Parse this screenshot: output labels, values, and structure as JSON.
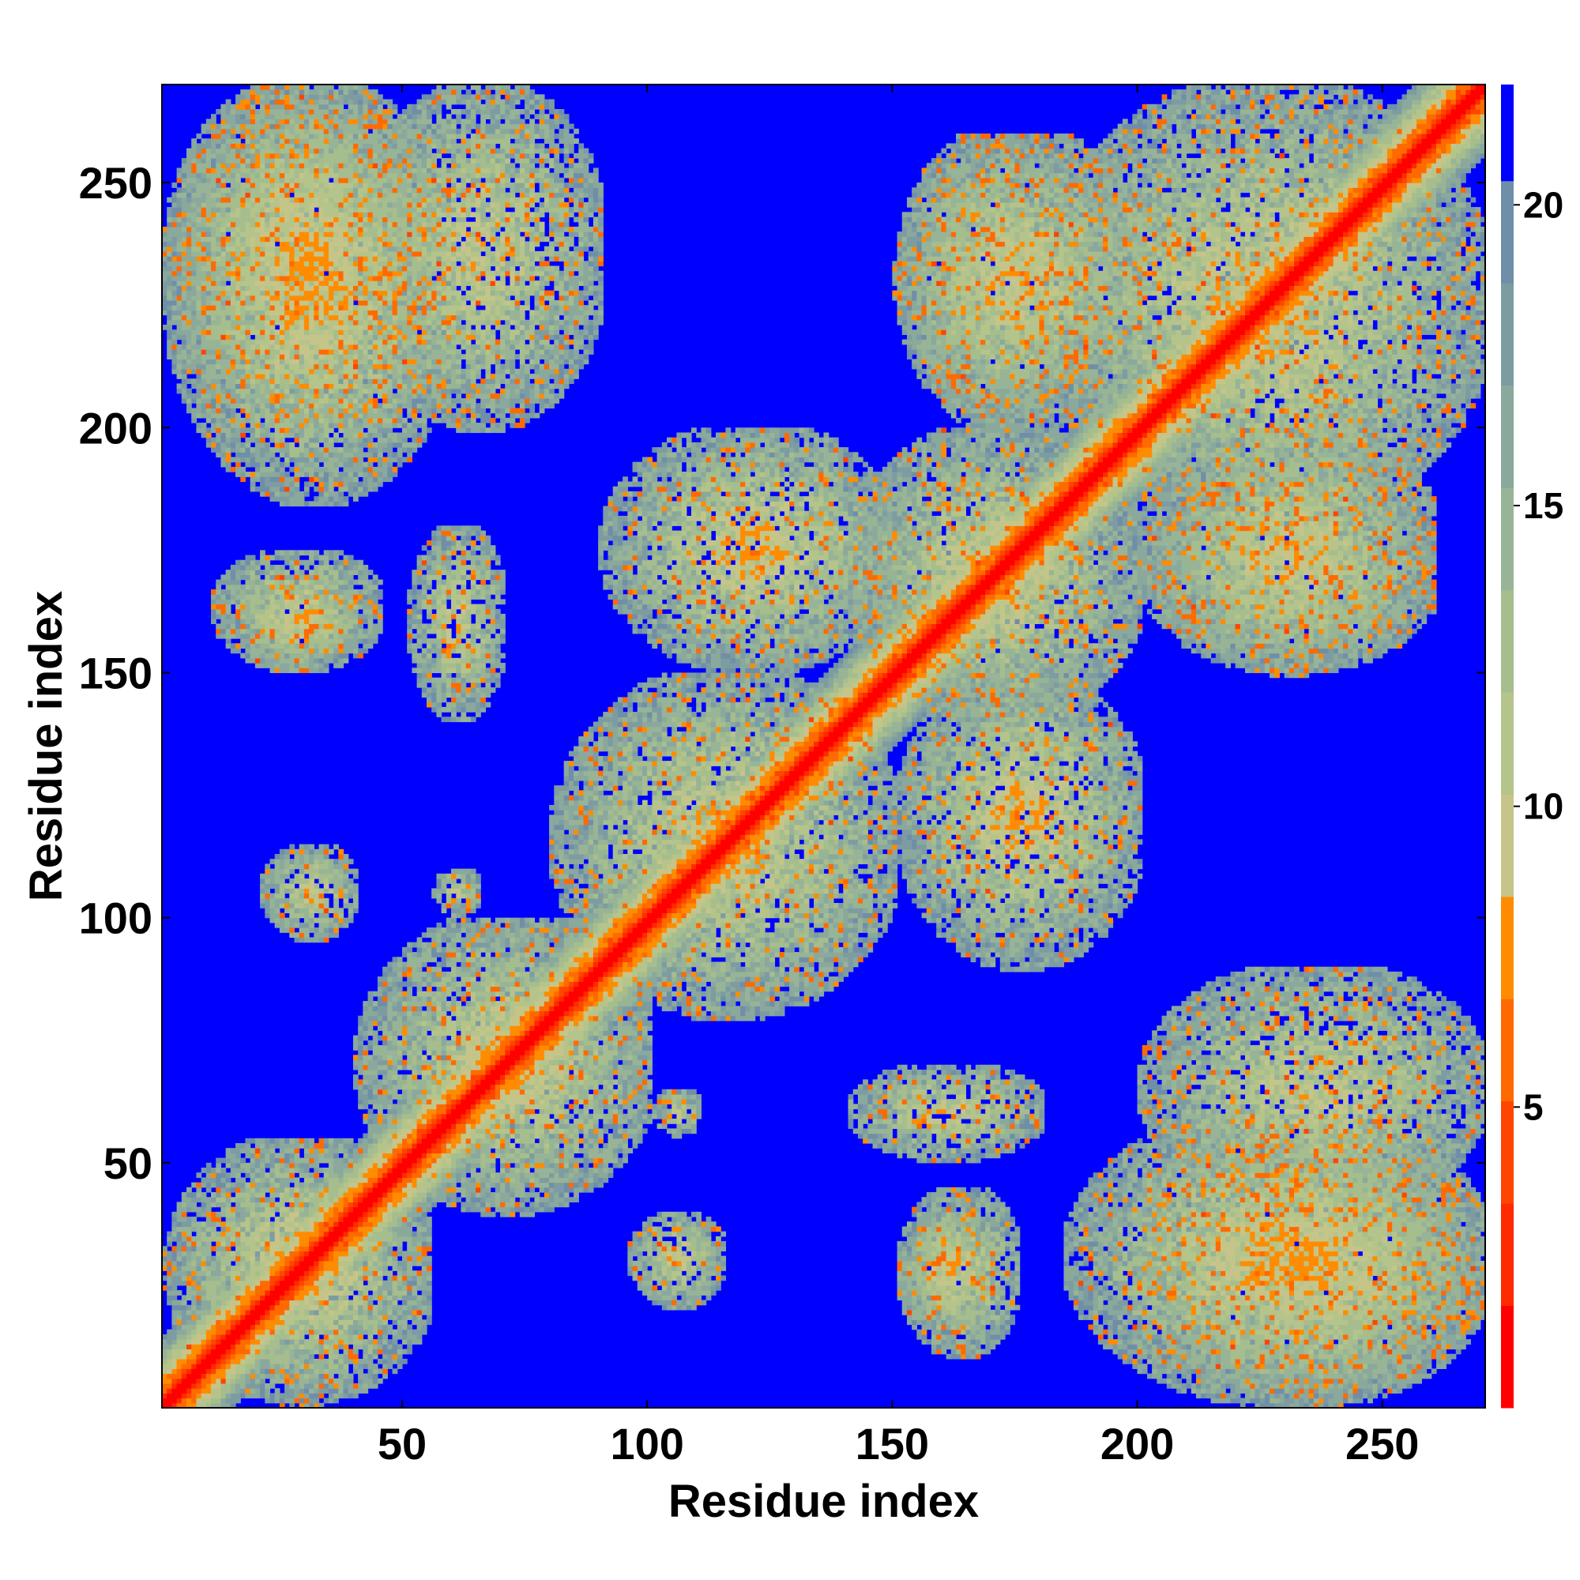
{
  "chart_data": {
    "type": "heatmap",
    "title": "",
    "xlabel": "Residue index",
    "ylabel": "Residue index",
    "n_residues": 270,
    "xlim": [
      1,
      270
    ],
    "ylim": [
      1,
      270
    ],
    "x_ticks": [
      50,
      100,
      150,
      200,
      250
    ],
    "y_ticks": [
      50,
      100,
      150,
      200,
      250
    ],
    "colorbar": {
      "range": [
        0,
        22
      ],
      "ticks": [
        5,
        10,
        15,
        20
      ],
      "levels": [
        {
          "min": 0,
          "max": 1.7,
          "color": "#ff0000"
        },
        {
          "min": 1.7,
          "max": 3.4,
          "color": "#ff2a00"
        },
        {
          "min": 3.4,
          "max": 5.1,
          "color": "#ff4500"
        },
        {
          "min": 5.1,
          "max": 6.8,
          "color": "#ff6a00"
        },
        {
          "min": 6.8,
          "max": 8.5,
          "color": "#ff8c00"
        },
        {
          "min": 8.5,
          "max": 10.2,
          "color": "#c5c58a"
        },
        {
          "min": 10.2,
          "max": 11.9,
          "color": "#b5c48a"
        },
        {
          "min": 11.9,
          "max": 13.6,
          "color": "#a6bd8e"
        },
        {
          "min": 13.6,
          "max": 15.3,
          "color": "#98b496"
        },
        {
          "min": 15.3,
          "max": 17.0,
          "color": "#8aa89c"
        },
        {
          "min": 17.0,
          "max": 18.7,
          "color": "#7d9ca2"
        },
        {
          "min": 18.7,
          "max": 20.4,
          "color": "#6f8ea8"
        },
        {
          "min": 20.4,
          "max": 22.0,
          "color": "#0000ff"
        }
      ]
    },
    "background_color": "#0000ff",
    "description_of_structure": "symmetric residue distance map; strong red diagonal",
    "contact_regions": [
      {
        "i": [
          1,
          270
        ],
        "j": [
          1,
          270
        ],
        "type": "diagonal_band",
        "width": 14
      },
      {
        "i": [
          1,
          55
        ],
        "j": [
          1,
          55
        ],
        "type": "block"
      },
      {
        "i": [
          40,
          100
        ],
        "j": [
          40,
          100
        ],
        "type": "block"
      },
      {
        "i": [
          1,
          55
        ],
        "j": [
          200,
          270
        ],
        "type": "block"
      },
      {
        "i": [
          200,
          270
        ],
        "j": [
          1,
          55
        ],
        "type": "block"
      },
      {
        "i": [
          1,
          60
        ],
        "j": [
          185,
          270
        ],
        "type": "block"
      },
      {
        "i": [
          185,
          270
        ],
        "j": [
          1,
          60
        ],
        "type": "block"
      },
      {
        "i": [
          180,
          270
        ],
        "j": [
          180,
          270
        ],
        "type": "block"
      },
      {
        "i": [
          80,
          150
        ],
        "j": [
          80,
          150
        ],
        "type": "block"
      },
      {
        "i": [
          140,
          200
        ],
        "j": [
          140,
          200
        ],
        "type": "block"
      },
      {
        "i": [
          90,
          150
        ],
        "j": [
          150,
          200
        ],
        "type": "block"
      },
      {
        "i": [
          150,
          200
        ],
        "j": [
          90,
          150
        ],
        "type": "block"
      },
      {
        "i": [
          150,
          200
        ],
        "j": [
          200,
          260
        ],
        "type": "patch"
      },
      {
        "i": [
          200,
          260
        ],
        "j": [
          150,
          200
        ],
        "type": "patch"
      },
      {
        "i": [
          15,
          40
        ],
        "j": [
          150,
          170
        ],
        "type": "patch"
      },
      {
        "i": [
          150,
          170
        ],
        "j": [
          15,
          40
        ],
        "type": "patch"
      },
      {
        "i": [
          50,
          70
        ],
        "j": [
          140,
          180
        ],
        "type": "patch"
      },
      {
        "i": [
          140,
          180
        ],
        "j": [
          50,
          70
        ],
        "type": "patch"
      },
      {
        "i": [
          95,
          115
        ],
        "j": [
          20,
          40
        ],
        "type": "patch"
      },
      {
        "i": [
          20,
          40
        ],
        "j": [
          95,
          115
        ],
        "type": "patch"
      },
      {
        "i": [
          150,
          175
        ],
        "j": [
          10,
          45
        ],
        "type": "patch"
      },
      {
        "i": [
          10,
          45
        ],
        "j": [
          150,
          175
        ],
        "type": "patch"
      },
      {
        "i": [
          100,
          110
        ],
        "j": [
          55,
          65
        ],
        "type": "patch"
      },
      {
        "i": [
          55,
          65
        ],
        "j": [
          100,
          110
        ],
        "type": "patch"
      },
      {
        "i": [
          200,
          270
        ],
        "j": [
          40,
          90
        ],
        "type": "patch"
      },
      {
        "i": [
          40,
          90
        ],
        "j": [
          200,
          270
        ],
        "type": "patch"
      },
      {
        "i": [
          150,
          190
        ],
        "j": [
          200,
          260
        ],
        "type": "patch"
      },
      {
        "i": [
          200,
          260
        ],
        "j": [
          150,
          190
        ],
        "type": "patch"
      }
    ]
  }
}
